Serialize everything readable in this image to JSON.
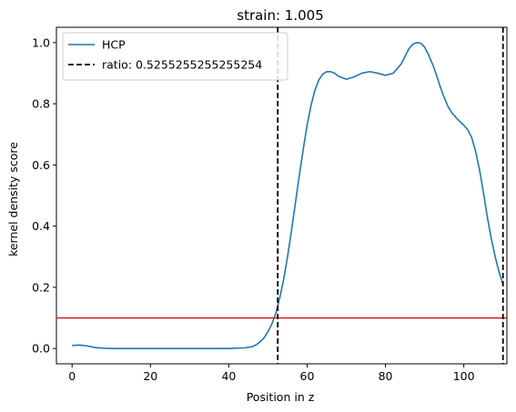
{
  "chart_data": {
    "type": "line",
    "title": "strain: 1.005",
    "xlabel": "Position in z",
    "ylabel": "kernel density score",
    "xlim": [
      -4,
      111
    ],
    "ylim": [
      -0.05,
      1.05
    ],
    "xticks": [
      0,
      20,
      40,
      60,
      80,
      100
    ],
    "yticks": [
      0.0,
      0.2,
      0.4,
      0.6,
      0.8,
      1.0
    ],
    "grid": false,
    "legend_position": "top-left",
    "series": [
      {
        "name": "HCP",
        "color": "#1f77b4",
        "style": "solid",
        "x": [
          0,
          2,
          4,
          6,
          8,
          10,
          15,
          20,
          25,
          30,
          35,
          40,
          44,
          46,
          47,
          48,
          49,
          50,
          51,
          52,
          53,
          54,
          55,
          56,
          57,
          58,
          59,
          60,
          61,
          62,
          63,
          64,
          65,
          66,
          67,
          68,
          70,
          72,
          74,
          76,
          78,
          80,
          82,
          84,
          85,
          86,
          87,
          88,
          89,
          90,
          91,
          92,
          93,
          94,
          95,
          96,
          97,
          98,
          99,
          100,
          101,
          102,
          103,
          104,
          105,
          106,
          107,
          108,
          109,
          110
        ],
        "y": [
          0.01,
          0.011,
          0.008,
          0.003,
          0.001,
          0.0,
          0.0,
          0.0,
          0.0,
          0.0,
          0.0,
          0.0,
          0.002,
          0.006,
          0.012,
          0.022,
          0.035,
          0.055,
          0.08,
          0.115,
          0.165,
          0.225,
          0.3,
          0.385,
          0.475,
          0.565,
          0.65,
          0.73,
          0.795,
          0.845,
          0.878,
          0.897,
          0.905,
          0.905,
          0.9,
          0.89,
          0.88,
          0.888,
          0.9,
          0.905,
          0.9,
          0.893,
          0.9,
          0.93,
          0.955,
          0.98,
          0.995,
          1.0,
          0.998,
          0.985,
          0.96,
          0.93,
          0.895,
          0.855,
          0.82,
          0.79,
          0.77,
          0.755,
          0.742,
          0.73,
          0.715,
          0.69,
          0.645,
          0.585,
          0.51,
          0.43,
          0.36,
          0.3,
          0.25,
          0.21
        ]
      },
      {
        "name": "ratio: 0.5255255255255254",
        "color": "#000000",
        "style": "dashed",
        "vertical_lines": [
          52.5,
          110
        ]
      }
    ],
    "hlines": [
      {
        "y": 0.1,
        "color": "#d62728"
      }
    ]
  }
}
